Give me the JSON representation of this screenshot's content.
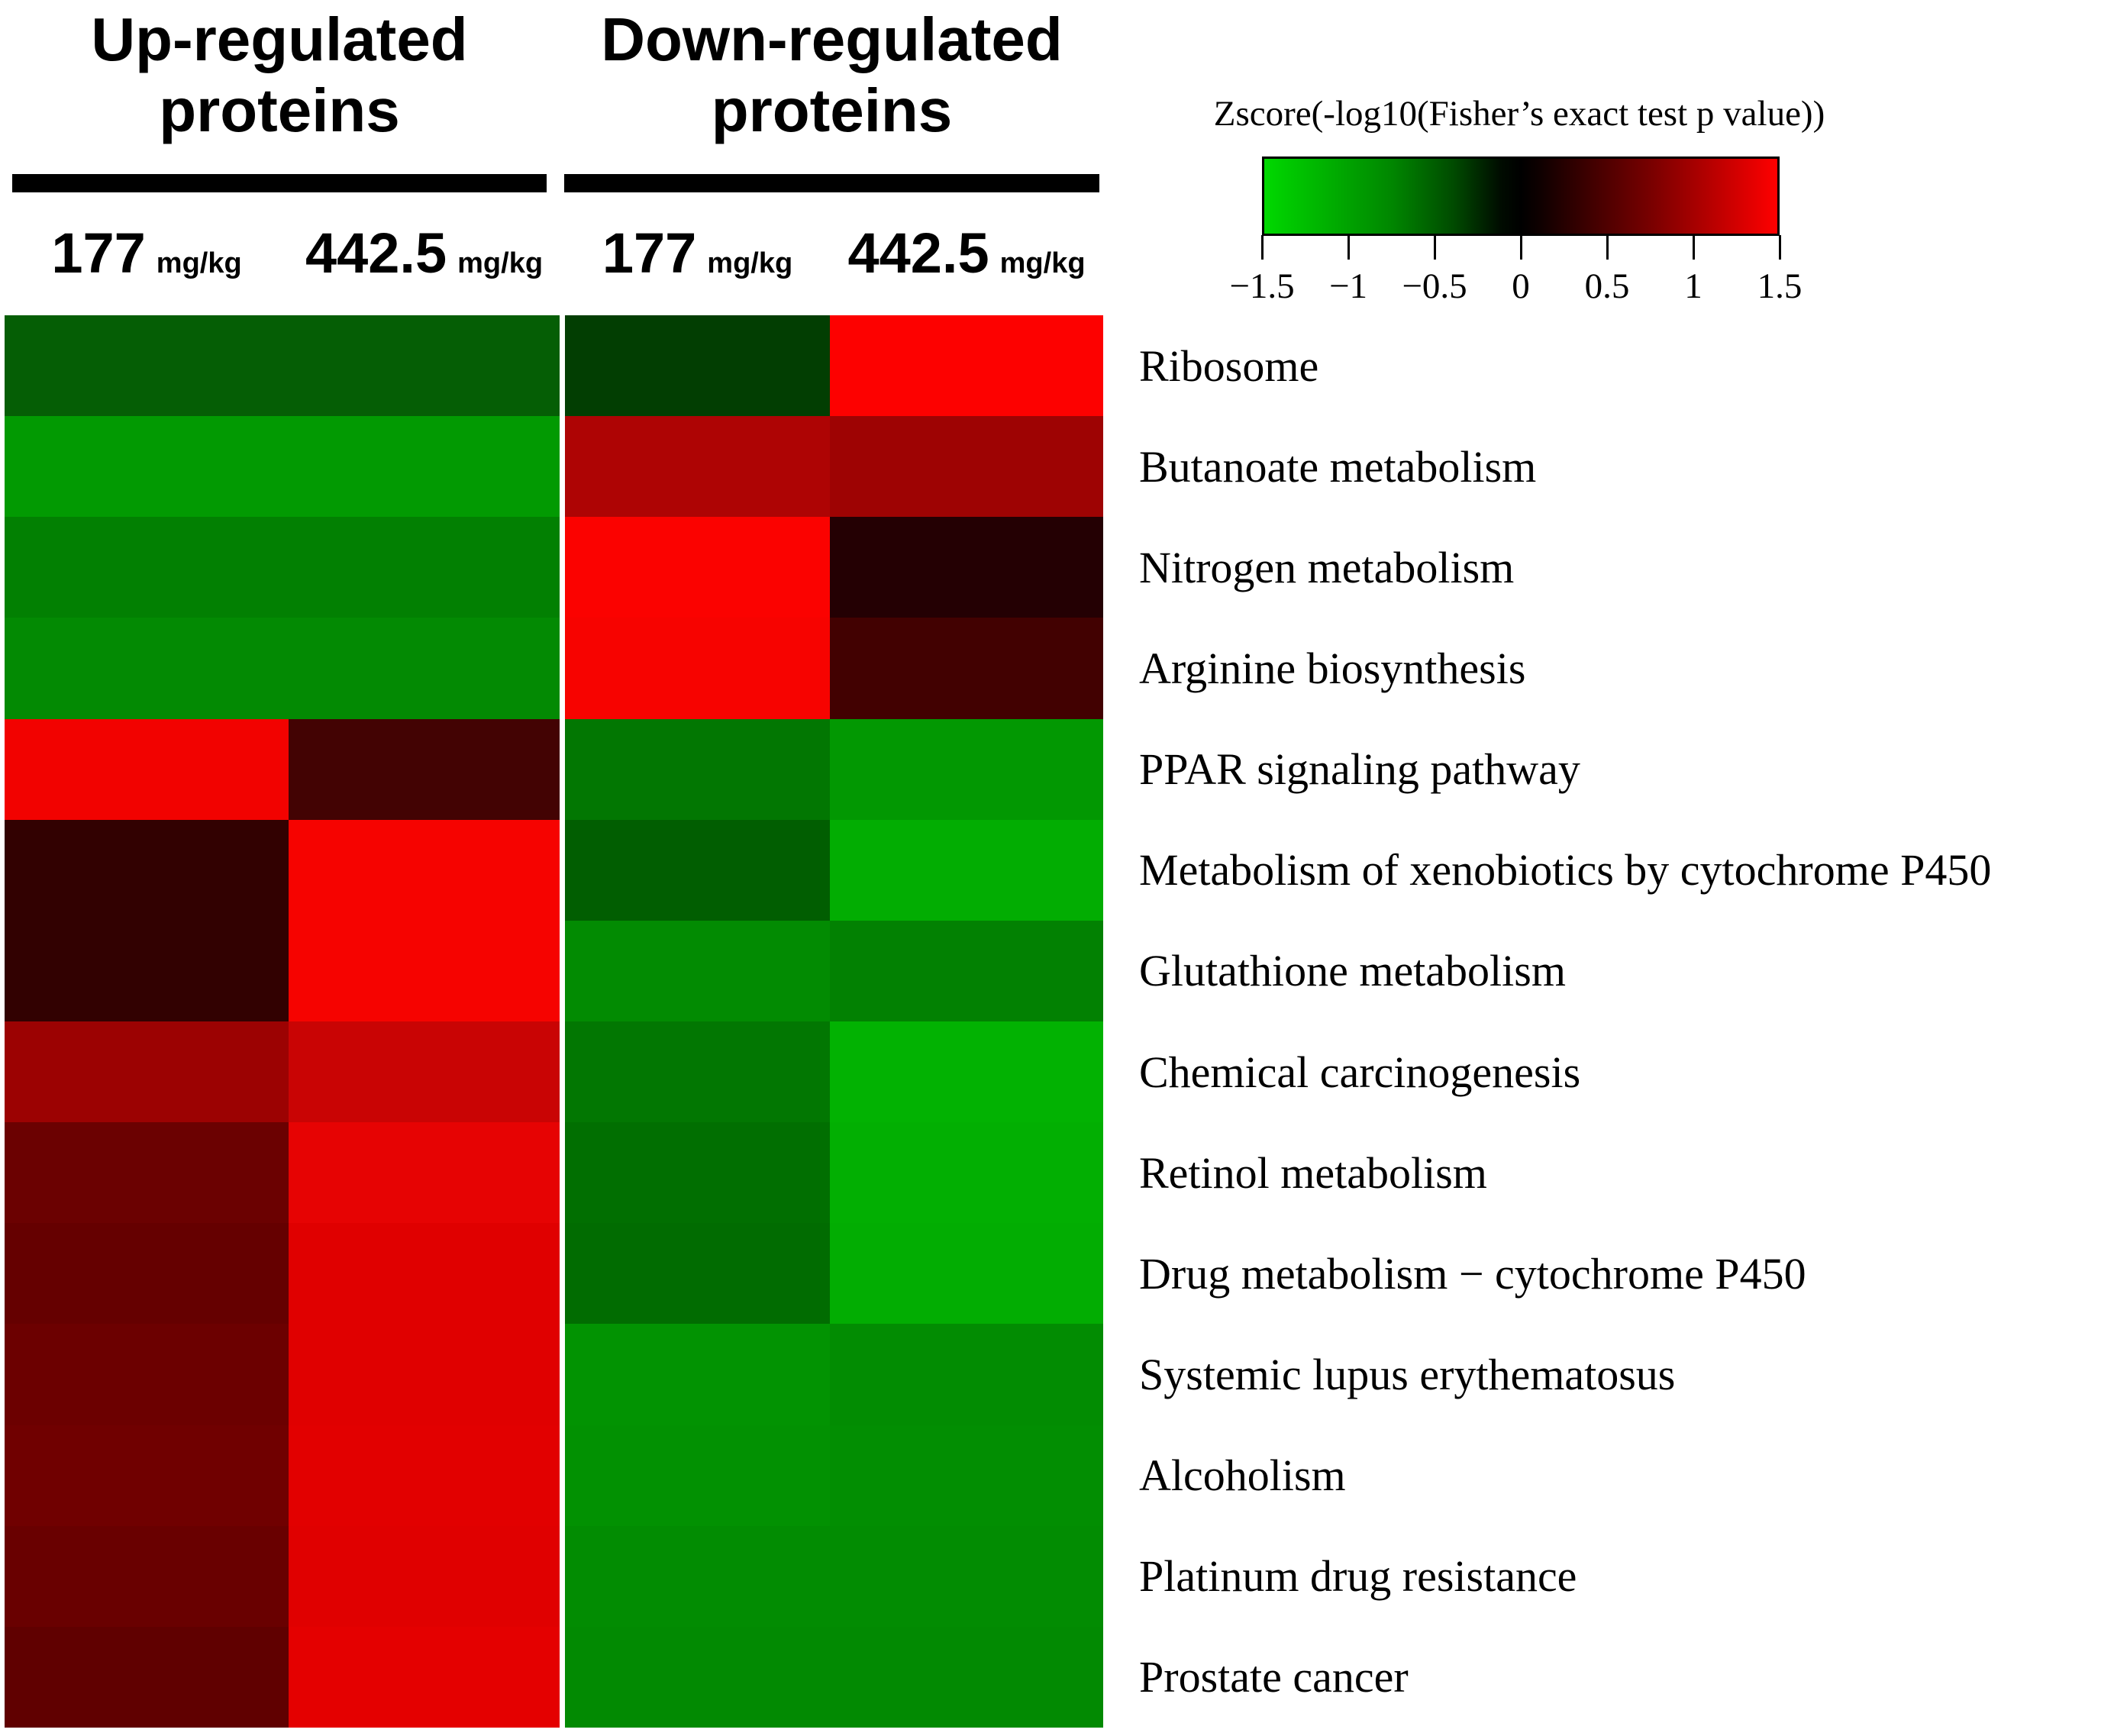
{
  "page": {
    "background": "#ffffff"
  },
  "headers": {
    "up": {
      "title": "Up-regulated proteins"
    },
    "down": {
      "title": "Down-regulated proteins"
    }
  },
  "column_headers": [
    {
      "group": "up",
      "dose": "177",
      "unit": "mg/kg"
    },
    {
      "group": "up",
      "dose": "442.5",
      "unit": "mg/kg"
    },
    {
      "group": "down",
      "dose": "177",
      "unit": "mg/kg"
    },
    {
      "group": "down",
      "dose": "442.5",
      "unit": "mg/kg"
    }
  ],
  "legend": {
    "title": "Zscore(-log10(Fisher’s exact test p value))",
    "tick_labels": [
      "−1.5",
      "−1",
      "−0.5",
      "0",
      "0.5",
      "1",
      "1.5"
    ],
    "negative_end_color": "#00d800",
    "center_color": "#000000",
    "positive_end_color": "#ff0000"
  },
  "chart_data": {
    "type": "heatmap",
    "value_label": "Zscore(-log10(Fisher’s exact test p value))",
    "zlim": [
      -1.5,
      1.5
    ],
    "legend_tick_values": [
      -1.5,
      -1,
      -0.5,
      0,
      0.5,
      1,
      1.5
    ],
    "colormap": "green-black-red",
    "column_groups": [
      {
        "label": "Up-regulated proteins",
        "columns": [
          "177 mg/kg",
          "442.5 mg/kg"
        ]
      },
      {
        "label": "Down-regulated proteins",
        "columns": [
          "177 mg/kg",
          "442.5 mg/kg"
        ]
      }
    ],
    "columns": [
      "Up 177 mg/kg",
      "Up 442.5 mg/kg",
      "Down 177 mg/kg",
      "Down 442.5 mg/kg"
    ],
    "rows": [
      "Ribosome",
      "Butanoate metabolism",
      "Nitrogen metabolism",
      "Arginine biosynthesis",
      "PPAR signaling pathway",
      "Metabolism of xenobiotics by cytochrome P450",
      "Glutathione metabolism",
      "Chemical carcinogenesis",
      "Retinol metabolism",
      "Drug metabolism − cytochrome P450",
      "Systemic lupus erythematosus",
      "Alcoholism",
      "Platinum drug resistance",
      "Prostate cancer"
    ],
    "values": [
      [
        -0.55,
        -0.55,
        -0.36,
        1.49
      ],
      [
        -0.91,
        -0.91,
        1.02,
        0.93
      ],
      [
        -0.75,
        -0.75,
        1.48,
        0.21
      ],
      [
        -0.81,
        -0.81,
        1.45,
        0.39
      ],
      [
        1.42,
        0.39,
        -0.7,
        -0.89
      ],
      [
        0.29,
        1.45,
        -0.55,
        -1.02
      ],
      [
        0.29,
        1.45,
        -0.82,
        -0.76
      ],
      [
        0.92,
        1.18,
        -0.7,
        -1.05
      ],
      [
        0.63,
        1.35,
        -0.65,
        -1.03
      ],
      [
        0.59,
        1.32,
        -0.64,
        -1.02
      ],
      [
        0.64,
        1.32,
        -0.86,
        -0.82
      ],
      [
        0.66,
        1.33,
        -0.85,
        -0.84
      ],
      [
        0.62,
        1.32,
        -0.82,
        -0.82
      ],
      [
        0.56,
        1.34,
        -0.81,
        -0.81
      ]
    ],
    "cell_colors": [
      [
        "#055e05",
        "#055e05",
        "#023e02",
        "#fd0100"
      ],
      [
        "#029a02",
        "#029a02",
        "#ae0404",
        "#9e0303"
      ],
      [
        "#028002",
        "#028002",
        "#fb0200",
        "#240003"
      ],
      [
        "#038a03",
        "#038a03",
        "#f70300",
        "#420101"
      ],
      [
        "#f20200",
        "#430303",
        "#027702",
        "#029802"
      ],
      [
        "#320101",
        "#f60300",
        "#015e01",
        "#02ad02"
      ],
      [
        "#320101",
        "#f60300",
        "#028b02",
        "#028102"
      ],
      [
        "#9c0202",
        "#c90404",
        "#027702",
        "#02b202"
      ],
      [
        "#6b0101",
        "#e60303",
        "#016f01",
        "#02af02"
      ],
      [
        "#650000",
        "#e00000",
        "#016c01",
        "#02ad02"
      ],
      [
        "#6c0000",
        "#e00000",
        "#029302",
        "#028c02"
      ],
      [
        "#700000",
        "#e20000",
        "#029102",
        "#028e02"
      ],
      [
        "#690000",
        "#e00000",
        "#028c02",
        "#028c02"
      ],
      [
        "#600000",
        "#e40000",
        "#028a02",
        "#028a02"
      ]
    ]
  }
}
